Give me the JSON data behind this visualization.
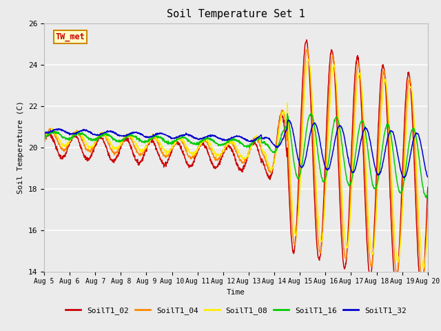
{
  "title": "Soil Temperature Set 1",
  "xlabel": "Time",
  "ylabel": "Soil Temperature (C)",
  "ylim": [
    14,
    26
  ],
  "x_tick_labels": [
    "Aug 5",
    "Aug 6",
    "Aug 7",
    "Aug 8",
    "Aug 9",
    "Aug 10",
    "Aug 11",
    "Aug 12",
    "Aug 13",
    "Aug 14",
    "Aug 15",
    "Aug 16",
    "Aug 17",
    "Aug 18",
    "Aug 19",
    "Aug 20"
  ],
  "annotation_text": "TW_met",
  "annotation_color": "#cc0000",
  "annotation_bg": "#ffffcc",
  "annotation_border": "#cc8800",
  "series_colors": {
    "SoilT1_02": "#cc0000",
    "SoilT1_04": "#ff8800",
    "SoilT1_08": "#ffee00",
    "SoilT1_16": "#00cc00",
    "SoilT1_32": "#0000cc"
  },
  "series_order": [
    "SoilT1_02",
    "SoilT1_04",
    "SoilT1_08",
    "SoilT1_16",
    "SoilT1_32"
  ],
  "bg_color": "#ebebeb",
  "grid_color": "#ffffff",
  "font_family": "monospace"
}
